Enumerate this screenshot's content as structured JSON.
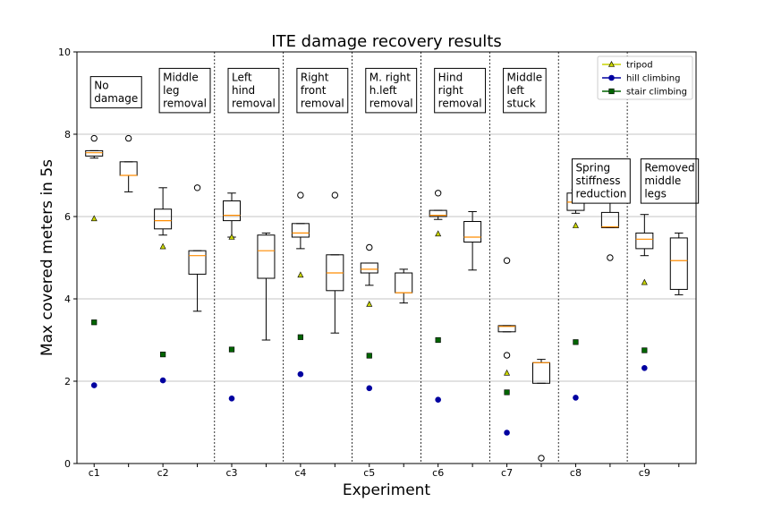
{
  "chart_data": {
    "type": "box",
    "title": "ITE damage recovery results",
    "xlabel": "Experiment",
    "ylabel": "Max covered meters in 5s",
    "ylim": [
      0,
      10
    ],
    "xlim": [
      0.5,
      18.5
    ],
    "yticks": [
      0,
      2,
      4,
      6,
      8,
      10
    ],
    "grid": "horizontal",
    "legend_position": "top-right",
    "categories": [
      "c1",
      "c2",
      "c3",
      "c4",
      "c5",
      "c6",
      "c7",
      "c8",
      "c9"
    ],
    "colors": {
      "tripod": "#c8d400",
      "hill": "#0000a0",
      "stair": "#006400",
      "median": "#ff8c00",
      "grid": "#b0b0b0"
    },
    "legend": [
      {
        "key": "tripod",
        "label": "tripod"
      },
      {
        "key": "hill",
        "label": "hill climbing"
      },
      {
        "key": "stair",
        "label": "stair climbing"
      }
    ],
    "conditions": [
      {
        "lines": [
          "No",
          "damage"
        ],
        "pos": 1,
        "top": 9.4
      },
      {
        "lines": [
          "Middle",
          "leg",
          "removal"
        ],
        "pos": 3,
        "top": 9.6
      },
      {
        "lines": [
          "Left",
          "hind",
          "removal"
        ],
        "pos": 5,
        "top": 9.6
      },
      {
        "lines": [
          "Right",
          "front",
          "removal"
        ],
        "pos": 7,
        "top": 9.6
      },
      {
        "lines": [
          "M. right",
          "h.left",
          "removal"
        ],
        "pos": 9,
        "top": 9.6
      },
      {
        "lines": [
          "Hind",
          "right",
          "removal"
        ],
        "pos": 11,
        "top": 9.6
      },
      {
        "lines": [
          "Middle",
          "left",
          "stuck"
        ],
        "pos": 13,
        "top": 9.6
      },
      {
        "lines": [
          "Spring",
          "stiffness",
          "reduction"
        ],
        "pos": 15,
        "top": 7.4
      },
      {
        "lines": [
          "Removed",
          "middle",
          "legs"
        ],
        "pos": 17,
        "top": 7.4
      }
    ],
    "boxes": [
      {
        "pos": 1,
        "whislo": 7.42,
        "q1": 7.47,
        "med": 7.55,
        "q3": 7.6,
        "whishi": 7.6,
        "fliers": [
          7.9
        ]
      },
      {
        "pos": 2,
        "whislo": 6.6,
        "q1": 7.0,
        "med": 7.0,
        "q3": 7.33,
        "whishi": 7.33,
        "fliers": [
          7.9
        ]
      },
      {
        "pos": 3,
        "whislo": 5.55,
        "q1": 5.7,
        "med": 5.9,
        "q3": 6.18,
        "whishi": 6.7,
        "fliers": []
      },
      {
        "pos": 4,
        "whislo": 3.7,
        "q1": 4.6,
        "med": 5.05,
        "q3": 5.17,
        "whishi": 5.17,
        "fliers": [
          6.7
        ]
      },
      {
        "pos": 5,
        "whislo": 5.5,
        "q1": 5.9,
        "med": 6.03,
        "q3": 6.38,
        "whishi": 6.57,
        "fliers": []
      },
      {
        "pos": 6,
        "whislo": 3.0,
        "q1": 4.5,
        "med": 5.17,
        "q3": 5.55,
        "whishi": 5.6,
        "fliers": []
      },
      {
        "pos": 7,
        "whislo": 5.22,
        "q1": 5.5,
        "med": 5.6,
        "q3": 5.83,
        "whishi": 5.83,
        "fliers": [
          6.52
        ]
      },
      {
        "pos": 8,
        "whislo": 3.17,
        "q1": 4.2,
        "med": 4.63,
        "q3": 5.07,
        "whishi": 5.07,
        "fliers": [
          6.52
        ]
      },
      {
        "pos": 9,
        "whislo": 4.33,
        "q1": 4.63,
        "med": 4.72,
        "q3": 4.87,
        "whishi": 4.87,
        "fliers": [
          5.25
        ]
      },
      {
        "pos": 10,
        "whislo": 3.9,
        "q1": 4.15,
        "med": 4.15,
        "q3": 4.63,
        "whishi": 4.72,
        "fliers": []
      },
      {
        "pos": 11,
        "whislo": 5.93,
        "q1": 6.0,
        "med": 6.03,
        "q3": 6.15,
        "whishi": 6.15,
        "fliers": [
          6.57
        ]
      },
      {
        "pos": 12,
        "whislo": 4.7,
        "q1": 5.38,
        "med": 5.5,
        "q3": 5.88,
        "whishi": 6.12,
        "fliers": []
      },
      {
        "pos": 13,
        "whislo": 3.2,
        "q1": 3.2,
        "med": 3.33,
        "q3": 3.35,
        "whishi": 3.35,
        "fliers": [
          4.93,
          2.63
        ]
      },
      {
        "pos": 14,
        "whislo": 1.95,
        "q1": 1.95,
        "med": 2.45,
        "q3": 2.45,
        "whishi": 2.53,
        "fliers": [
          0.13
        ]
      },
      {
        "pos": 15,
        "whislo": 6.08,
        "q1": 6.15,
        "med": 6.35,
        "q3": 6.57,
        "whishi": 6.65,
        "fliers": []
      },
      {
        "pos": 16,
        "whislo": 5.73,
        "q1": 5.73,
        "med": 5.75,
        "q3": 6.1,
        "whishi": 6.52,
        "fliers": [
          5.0
        ]
      },
      {
        "pos": 17,
        "whislo": 5.05,
        "q1": 5.22,
        "med": 5.45,
        "q3": 5.6,
        "whishi": 6.05,
        "fliers": []
      },
      {
        "pos": 18,
        "whislo": 4.1,
        "q1": 4.23,
        "med": 4.93,
        "q3": 5.48,
        "whishi": 5.6,
        "fliers": []
      }
    ],
    "series": [
      {
        "name": "tripod",
        "key": "tripod",
        "marker": "triangle",
        "points": [
          [
            1,
            5.95
          ],
          [
            3,
            5.27
          ],
          [
            5,
            5.5
          ],
          [
            7,
            4.58
          ],
          [
            9,
            3.87
          ],
          [
            11,
            5.58
          ],
          [
            13,
            2.2
          ],
          [
            15,
            5.78
          ],
          [
            17,
            4.4
          ]
        ]
      },
      {
        "name": "hill climbing",
        "key": "hill",
        "marker": "circle",
        "points": [
          [
            1,
            1.9
          ],
          [
            3,
            2.02
          ],
          [
            5,
            1.58
          ],
          [
            7,
            2.17
          ],
          [
            9,
            1.83
          ],
          [
            11,
            1.55
          ],
          [
            13,
            0.75
          ],
          [
            15,
            1.6
          ],
          [
            17,
            2.32
          ]
        ]
      },
      {
        "name": "stair climbing",
        "key": "stair",
        "marker": "square",
        "points": [
          [
            1,
            3.43
          ],
          [
            3,
            2.65
          ],
          [
            5,
            2.77
          ],
          [
            7,
            3.07
          ],
          [
            9,
            2.62
          ],
          [
            11,
            3.0
          ],
          [
            13,
            1.73
          ],
          [
            15,
            2.95
          ],
          [
            17,
            2.75
          ]
        ]
      }
    ],
    "separators": [
      4.5,
      6.5,
      8.5,
      10.5,
      12.5,
      14.5,
      16.5
    ]
  }
}
